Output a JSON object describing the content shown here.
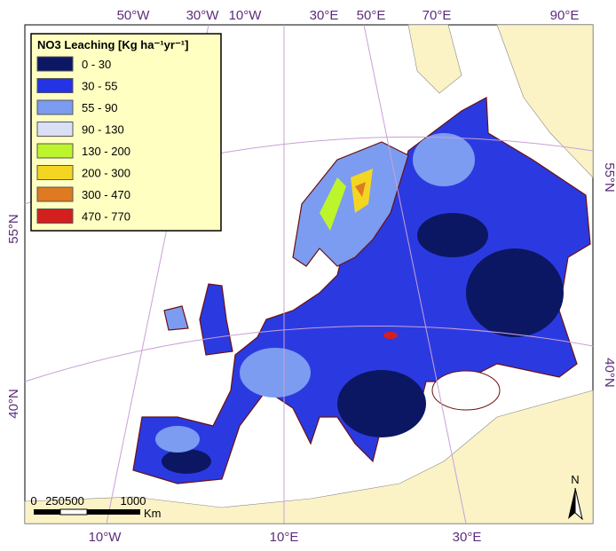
{
  "legend": {
    "title": "NO3 Leaching [Kg ha⁻¹yr⁻¹]",
    "classes": [
      {
        "label": "0 - 30",
        "color": "#0c1763"
      },
      {
        "label": "30 - 55",
        "color": "#2433e6"
      },
      {
        "label": "55 - 90",
        "color": "#7b9cf0"
      },
      {
        "label": "90 - 130",
        "color": "#d9e0f6"
      },
      {
        "label": "130 - 200",
        "color": "#bdf52c"
      },
      {
        "label": "200 - 300",
        "color": "#f4d622"
      },
      {
        "label": "300 - 470",
        "color": "#e07a22"
      },
      {
        "label": "470 - 770",
        "color": "#d41f1f"
      }
    ]
  },
  "graticule": {
    "top": [
      "50°W",
      "30°W",
      "10°W",
      "30°E",
      "50°E",
      "70°E",
      "90°E"
    ],
    "bottom": [
      "10°W",
      "10°E",
      "30°E"
    ],
    "left": [
      "55°N",
      "40°N"
    ],
    "right": [
      "55°N",
      "40°N"
    ]
  },
  "scale_bar": {
    "labels": [
      "0",
      "250",
      "500",
      "1000"
    ],
    "unit": "Km"
  },
  "north_arrow": "N"
}
